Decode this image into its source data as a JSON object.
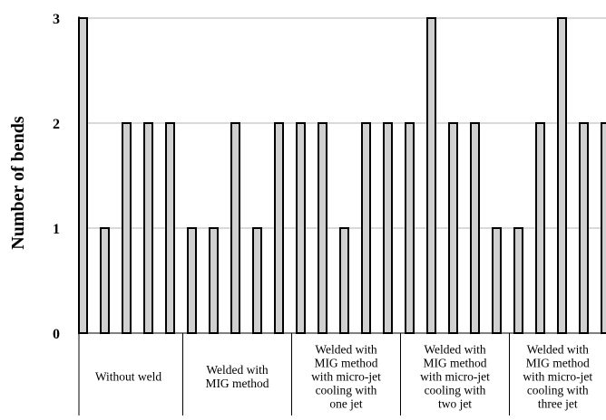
{
  "chart_data": {
    "type": "bar",
    "title": "",
    "xlabel": "",
    "ylabel": "Number of bends",
    "ylim": [
      0,
      3
    ],
    "yticks": [
      "0",
      "1",
      "2",
      "3"
    ],
    "grid": true,
    "legend": "none",
    "colors": {
      "bar_fill": "#d0d0d0",
      "bar_stroke": "#000000",
      "grid": "#b3b3b3",
      "axis": "#000000"
    },
    "groups": [
      {
        "label_lines": [
          "Without weld"
        ],
        "values": [
          3,
          1,
          2,
          2,
          2
        ]
      },
      {
        "label_lines": [
          "Welded with",
          "MIG method"
        ],
        "values": [
          1,
          1,
          2,
          1,
          2
        ]
      },
      {
        "label_lines": [
          "Welded with",
          "MIG method",
          "with micro-jet",
          "cooling with",
          "one jet"
        ],
        "values": [
          2,
          2,
          1,
          2,
          2
        ]
      },
      {
        "label_lines": [
          "Welded with",
          "MIG method",
          "with micro-jet",
          "cooling with",
          "two jet"
        ],
        "values": [
          2,
          3,
          2,
          2,
          1
        ]
      },
      {
        "label_lines": [
          "Welded with",
          "MIG method",
          "with micro-jet",
          "cooling with",
          "three jet"
        ],
        "values": [
          1,
          2,
          3,
          2,
          2
        ]
      }
    ]
  }
}
